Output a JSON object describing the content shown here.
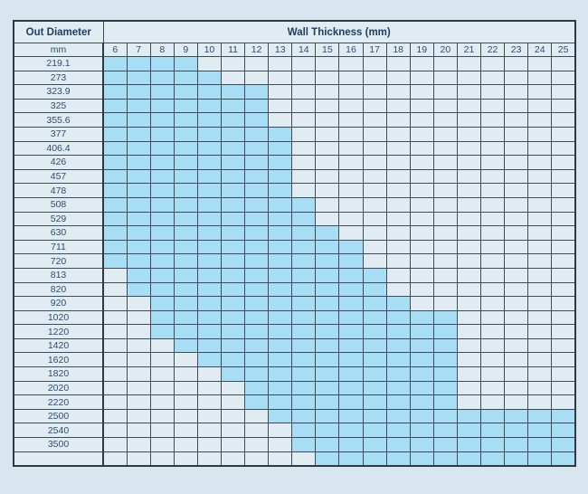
{
  "page": {
    "background": "#d8e6ef"
  },
  "chart_data": {
    "type": "heatmap",
    "title": "Wall Thickness (mm)",
    "row_header_label": "Out Diameter",
    "row_header_unit": "mm",
    "columns": [
      6,
      7,
      8,
      9,
      10,
      11,
      12,
      13,
      14,
      15,
      16,
      17,
      18,
      19,
      20,
      21,
      22,
      23,
      24,
      25
    ],
    "rows": [
      {
        "diameter": "219.1",
        "thickness_from": 6,
        "thickness_to": 9
      },
      {
        "diameter": "273",
        "thickness_from": 6,
        "thickness_to": 10
      },
      {
        "diameter": "323.9",
        "thickness_from": 6,
        "thickness_to": 12
      },
      {
        "diameter": "325",
        "thickness_from": 6,
        "thickness_to": 12
      },
      {
        "diameter": "355.6",
        "thickness_from": 6,
        "thickness_to": 12
      },
      {
        "diameter": "377",
        "thickness_from": 6,
        "thickness_to": 13
      },
      {
        "diameter": "406.4",
        "thickness_from": 6,
        "thickness_to": 13
      },
      {
        "diameter": "426",
        "thickness_from": 6,
        "thickness_to": 13
      },
      {
        "diameter": "457",
        "thickness_from": 6,
        "thickness_to": 13
      },
      {
        "diameter": "478",
        "thickness_from": 6,
        "thickness_to": 13
      },
      {
        "diameter": "508",
        "thickness_from": 6,
        "thickness_to": 14
      },
      {
        "diameter": "529",
        "thickness_from": 6,
        "thickness_to": 14
      },
      {
        "diameter": "630",
        "thickness_from": 6,
        "thickness_to": 15
      },
      {
        "diameter": "711",
        "thickness_from": 6,
        "thickness_to": 16
      },
      {
        "diameter": "720",
        "thickness_from": 6,
        "thickness_to": 16
      },
      {
        "diameter": "813",
        "thickness_from": 7,
        "thickness_to": 17
      },
      {
        "diameter": "820",
        "thickness_from": 7,
        "thickness_to": 17
      },
      {
        "diameter": "920",
        "thickness_from": 8,
        "thickness_to": 18
      },
      {
        "diameter": "1020",
        "thickness_from": 8,
        "thickness_to": 20
      },
      {
        "diameter": "1220",
        "thickness_from": 8,
        "thickness_to": 20
      },
      {
        "diameter": "1420",
        "thickness_from": 9,
        "thickness_to": 20
      },
      {
        "diameter": "1620",
        "thickness_from": 10,
        "thickness_to": 20
      },
      {
        "diameter": "1820",
        "thickness_from": 11,
        "thickness_to": 20
      },
      {
        "diameter": "2020",
        "thickness_from": 12,
        "thickness_to": 20
      },
      {
        "diameter": "2220",
        "thickness_from": 12,
        "thickness_to": 20
      },
      {
        "diameter": "2500",
        "thickness_from": 13,
        "thickness_to": 25
      },
      {
        "diameter": "2540",
        "thickness_from": 14,
        "thickness_to": 25
      },
      {
        "diameter": "3500",
        "thickness_from": 14,
        "thickness_to": 25
      },
      {
        "diameter": "",
        "thickness_from": 15,
        "thickness_to": 25
      }
    ],
    "colors": {
      "highlight": "#a8def5",
      "cell": "#e0ebf2",
      "grid": "#3f4b55",
      "text": "#2e4e6e"
    },
    "legend_position": "none",
    "grid": true
  }
}
